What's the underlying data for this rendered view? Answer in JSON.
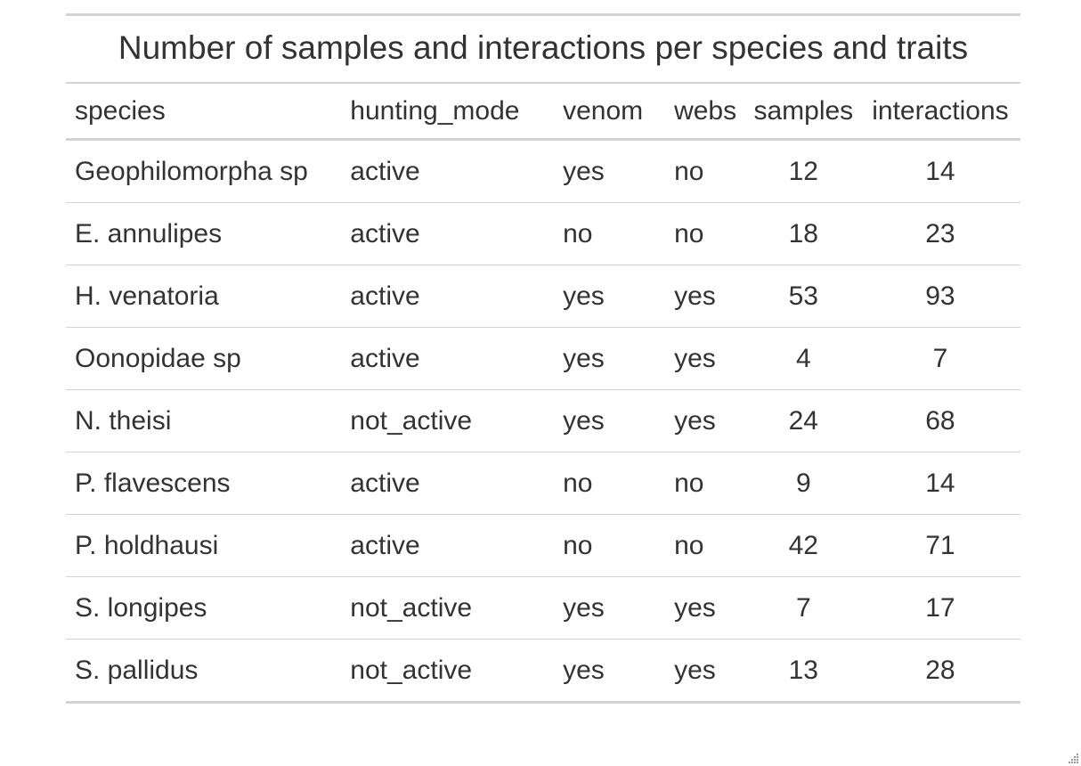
{
  "table": {
    "title": "Number of samples and interactions per species and traits",
    "headers": {
      "species": "species",
      "hunting_mode": "hunting_mode",
      "venom": "venom",
      "webs": "webs",
      "samples": "samples",
      "interactions": "interactions"
    },
    "rows": [
      {
        "species": "Geophilomorpha sp",
        "hunting_mode": "active",
        "venom": "yes",
        "webs": "no",
        "samples": "12",
        "interactions": "14"
      },
      {
        "species": "E. annulipes",
        "hunting_mode": "active",
        "venom": "no",
        "webs": "no",
        "samples": "18",
        "interactions": "23"
      },
      {
        "species": "H. venatoria",
        "hunting_mode": "active",
        "venom": "yes",
        "webs": "yes",
        "samples": "53",
        "interactions": "93"
      },
      {
        "species": "Oonopidae sp",
        "hunting_mode": "active",
        "venom": "yes",
        "webs": "yes",
        "samples": "4",
        "interactions": "7"
      },
      {
        "species": "N. theisi",
        "hunting_mode": "not_active",
        "venom": "yes",
        "webs": "yes",
        "samples": "24",
        "interactions": "68"
      },
      {
        "species": "P. flavescens",
        "hunting_mode": "active",
        "venom": "no",
        "webs": "no",
        "samples": "9",
        "interactions": "14"
      },
      {
        "species": "P. holdhausi",
        "hunting_mode": "active",
        "venom": "no",
        "webs": "no",
        "samples": "42",
        "interactions": "71"
      },
      {
        "species": "S. longipes",
        "hunting_mode": "not_active",
        "venom": "yes",
        "webs": "yes",
        "samples": "7",
        "interactions": "17"
      },
      {
        "species": "S. pallidus",
        "hunting_mode": "not_active",
        "venom": "yes",
        "webs": "yes",
        "samples": "13",
        "interactions": "28"
      }
    ]
  },
  "colors": {
    "text": "#333333",
    "border": "#d3d3d3",
    "background": "#ffffff"
  },
  "icons": {
    "resize_grip": "resize-grip-icon"
  }
}
